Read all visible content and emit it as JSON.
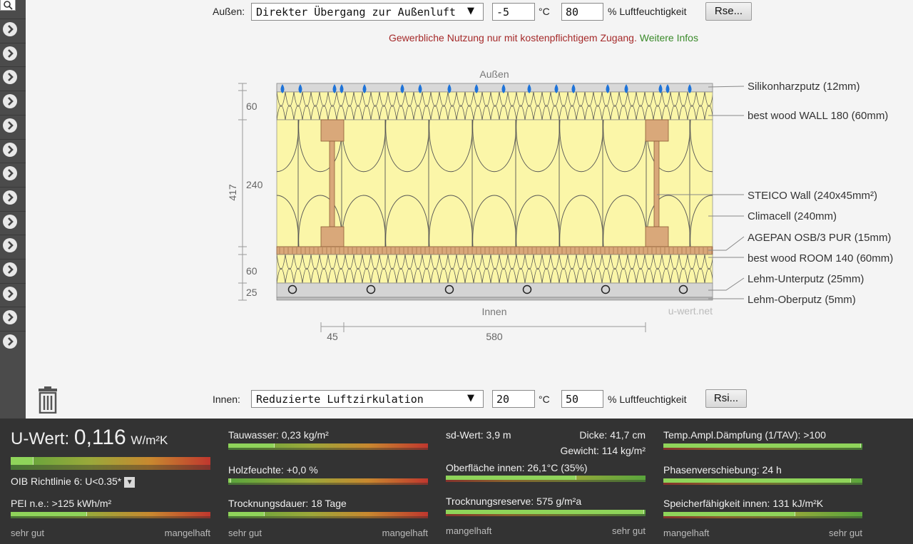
{
  "outside": {
    "label": "Außen:",
    "select_value": "Direkter Übergang zur Außenluft",
    "temperature": "-5",
    "temp_unit": "°C",
    "humidity": "80",
    "humidity_unit": "% Luftfeuchtigkeit",
    "button": "Rse..."
  },
  "notice": {
    "text": "Gewerbliche Nutzung nur mit kostenpflichtigem Zugang.",
    "link": "Weitere Infos"
  },
  "drawing": {
    "top_label": "Außen",
    "bottom_label": "Innen",
    "watermark": "u-wert.net",
    "dim_total": "417",
    "dim_layers": [
      "60",
      "240",
      "60",
      "25"
    ],
    "dim_bottom": [
      "45",
      "580"
    ],
    "layers": [
      "Silikonharzputz (12mm)",
      "best wood WALL 180 (60mm)",
      "STEICO  Wall (240x45mm²)",
      "Climacell (240mm)",
      "AGEPAN OSB/3 PUR (15mm)",
      "best wood ROOM 140 (60mm)",
      "Lehm-Unterputz (25mm)",
      "Lehm-Oberputz (5mm)"
    ]
  },
  "inside": {
    "label": "Innen:",
    "select_value": "Reduzierte Luftzirkulation",
    "temperature": "20",
    "temp_unit": "°C",
    "humidity": "50",
    "humidity_unit": "% Luftfeuchtigkeit",
    "button": "Rsi..."
  },
  "results": {
    "uwert_label": "U-Wert:",
    "uwert_value": "0,116",
    "uwert_unit": "W/m²K",
    "uwert_level": 0.11,
    "oib": "OIB Richtlinie 6: U<0.35*",
    "pei": "PEI n.e.: >125 kWh/m²",
    "pei_level": 0.38,
    "col1_scale": [
      "sehr gut",
      "mangelhaft"
    ],
    "tauwasser": "Tauwasser: 0,23 kg/m²",
    "tauwasser_level": 0.23,
    "holzfeuchte": "Holzfeuchte: +0,0 %",
    "holzfeuchte_level": 0.01,
    "trocknungsdauer": "Trocknungsdauer: 18 Tage",
    "trocknungsdauer_level": 0.18,
    "col2_scale": [
      "sehr gut",
      "mangelhaft"
    ],
    "sdwert": "sd-Wert: 3,9 m",
    "dicke": "Dicke: 41,7 cm",
    "gewicht": "Gewicht: 114 kg/m²",
    "oberflaeche": "Oberfläche innen: 26,1°C (35%)",
    "oberflaeche_level": 0.65,
    "trocknungsreserve": "Trocknungsreserve: 575 g/m²a",
    "trocknungsreserve_level": 0.99,
    "col3_scale": [
      "mangelhaft",
      "sehr gut"
    ],
    "tempampl": "Temp.Ampl.Dämpfung (1/TAV): >100",
    "tempampl_level": 0.99,
    "phasen": "Phasenverschiebung: 24 h",
    "phasen_level": 0.94,
    "speicher": "Speicherfähigkeit innen: 131 kJ/m²K",
    "speicher_level": 0.66,
    "col4_scale": [
      "mangelhaft",
      "sehr gut"
    ]
  },
  "icons": {
    "search": "search-icon",
    "nav": "chevron-right-icon",
    "delete": "trash-icon"
  },
  "colors": {
    "insulation": "#fbf6a8",
    "wood": "#d9a87a",
    "panel_bg": "#333333",
    "notice_red": "#a52a2a",
    "notice_green": "#3a8a2a"
  }
}
